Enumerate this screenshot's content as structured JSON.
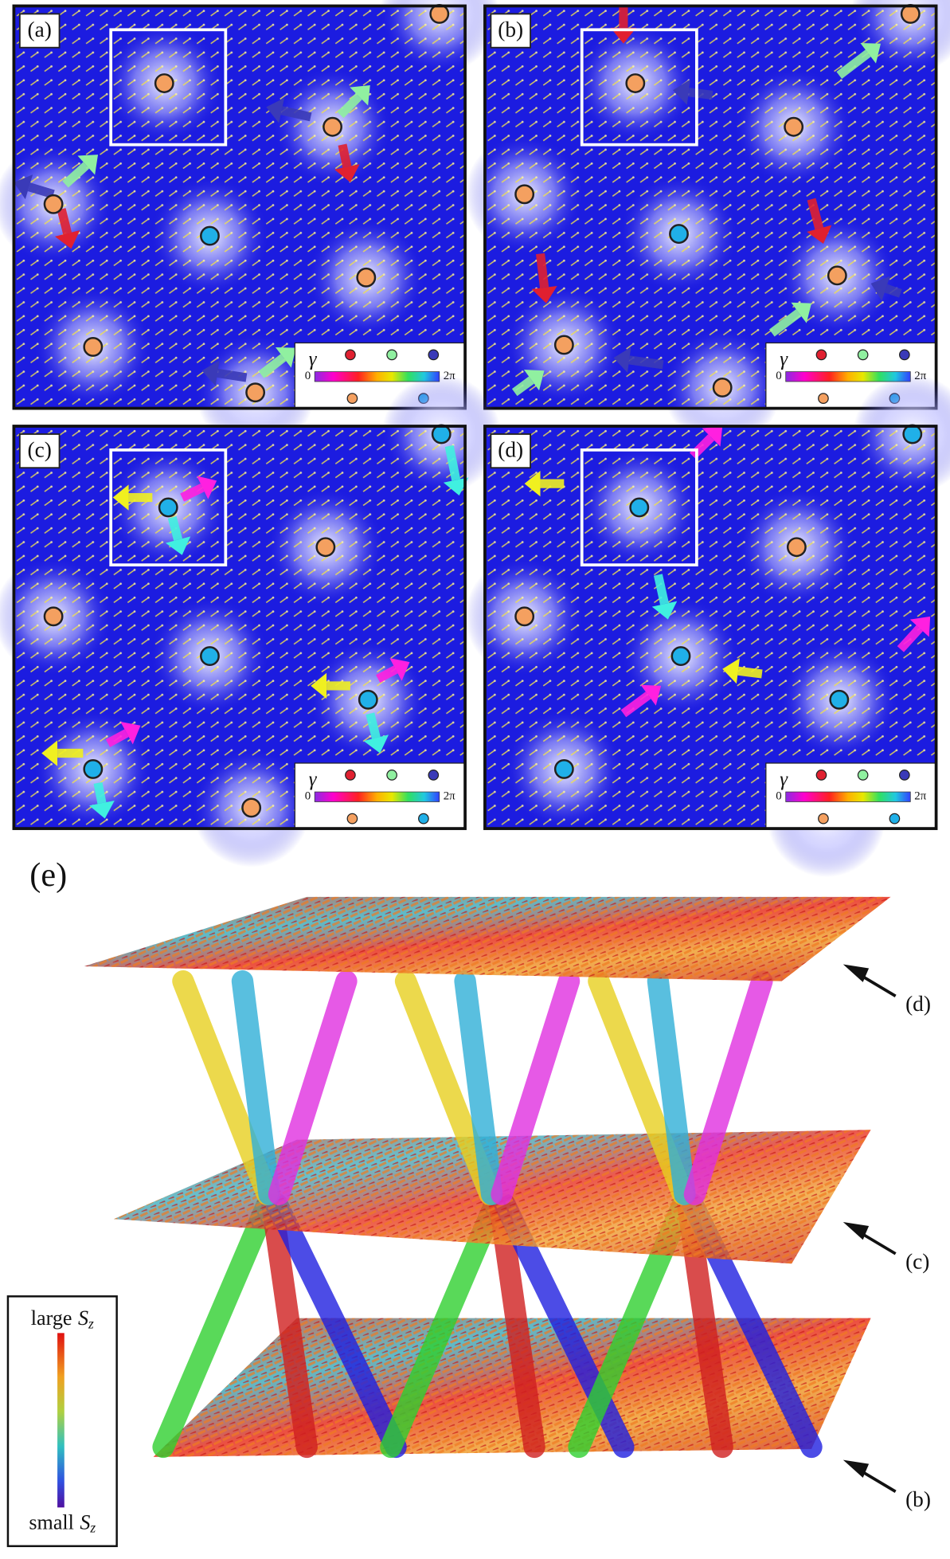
{
  "panels": [
    {
      "label": "(a)",
      "legend": {
        "symbol": "γ",
        "min": "0",
        "max": "2π"
      }
    },
    {
      "label": "(b)",
      "legend": {
        "symbol": "γ",
        "min": "0",
        "max": "2π"
      }
    },
    {
      "label": "(c)",
      "legend": {
        "symbol": "γ",
        "min": "0",
        "max": "2π"
      }
    },
    {
      "label": "(d)",
      "legend": {
        "symbol": "γ",
        "min": "0",
        "max": "2π"
      }
    }
  ],
  "panel_e": {
    "label": "(e)",
    "layer_labels": [
      "(d)",
      "(c)",
      "(b)"
    ],
    "colorbar": {
      "top": {
        "word": "large",
        "symbol": "S",
        "sub": "z"
      },
      "bottom": {
        "word": "small",
        "symbol": "S",
        "sub": "z"
      }
    }
  }
}
